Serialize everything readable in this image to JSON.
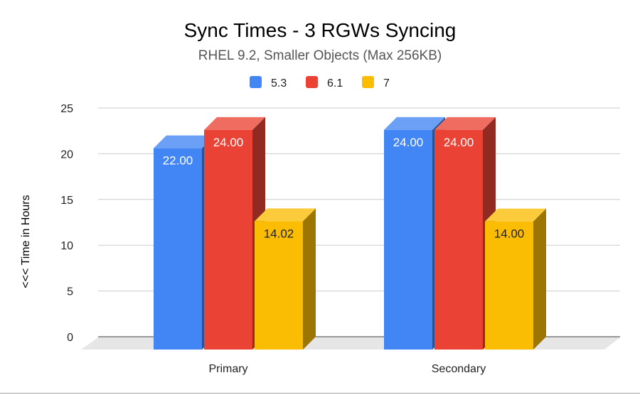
{
  "chart_data": {
    "type": "bar",
    "title": "Sync Times - 3 RGWs Syncing",
    "subtitle": "RHEL 9.2, Smaller Objects (Max 256KB)",
    "xlabel": "",
    "ylabel": "<<<   Time in Hours",
    "ylim": [
      0,
      25
    ],
    "yticks": [
      0,
      5,
      10,
      15,
      20,
      25
    ],
    "grid": true,
    "legend_position": "top",
    "categories": [
      "Primary",
      "Secondary"
    ],
    "series": [
      {
        "name": "5.3",
        "color": "#4285f4",
        "values": [
          22.0,
          24.0
        ],
        "labels": [
          "22.00",
          "24.00"
        ]
      },
      {
        "name": "6.1",
        "color": "#ea4335",
        "values": [
          24.0,
          24.0
        ],
        "labels": [
          "24.00",
          "24.00"
        ]
      },
      {
        "name": "7",
        "color": "#fbbc04",
        "values": [
          14.02,
          14.0
        ],
        "labels": [
          "14.02",
          "14.00"
        ]
      }
    ]
  }
}
